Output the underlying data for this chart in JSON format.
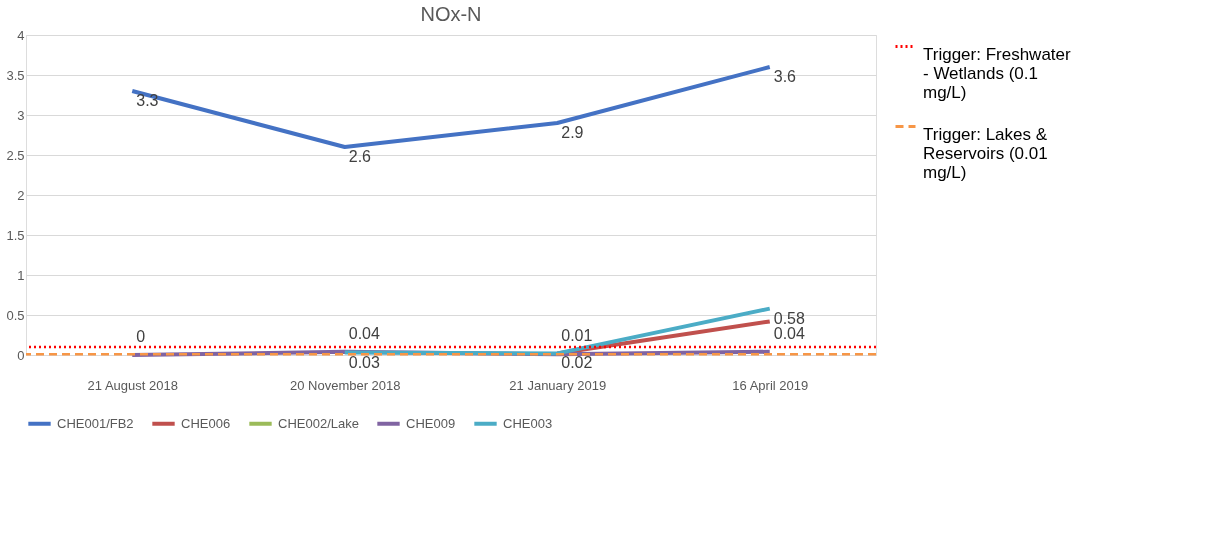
{
  "chart_data": {
    "type": "line",
    "title": "NOx-N",
    "categories": [
      "21 August 2018",
      "20 November 2018",
      "21 January 2019",
      "16 April 2019"
    ],
    "ylim": [
      0,
      4
    ],
    "yticks": [
      0,
      0.5,
      1,
      1.5,
      2,
      2.5,
      3,
      3.5,
      4
    ],
    "grid": "y",
    "legend": "bottom",
    "marker": "none",
    "line_style": "solid",
    "series": [
      {
        "name": "CHE001/FB2",
        "color": "#4472c4",
        "values": [
          3.3,
          2.6,
          2.9,
          3.6
        ],
        "value_labels": [
          "3.3",
          "2.6",
          "2.9",
          "3.6"
        ]
      },
      {
        "name": "CHE006",
        "color": "#c0504d",
        "values": [
          null,
          null,
          0.02,
          0.42
        ]
      },
      {
        "name": "CHE002/Lake",
        "color": "#9bbb59",
        "values": [
          null,
          null,
          null,
          null
        ]
      },
      {
        "name": "CHE009",
        "color": "#8064a2",
        "values": [
          0,
          0.04,
          0.01,
          0.04
        ],
        "value_labels": [
          "0",
          "0.04",
          "0.01",
          "0.04"
        ]
      },
      {
        "name": "CHE003",
        "color": "#4bacc6",
        "values": [
          null,
          0.03,
          0.02,
          0.58
        ],
        "value_labels": [
          null,
          "0.03",
          "0.02",
          "0.58"
        ]
      }
    ],
    "ref_lines": [
      {
        "axis": "y",
        "value": 0.1,
        "label": "Trigger: Freshwater - Wetlands (0.1 mg/L)",
        "color": "#ff0000",
        "line_style": "dotted"
      },
      {
        "axis": "y",
        "value": 0.01,
        "label": "Trigger: Lakes & Reservoirs (0.01 mg/L)",
        "color": "#f79646",
        "line_style": "dashed"
      }
    ]
  }
}
